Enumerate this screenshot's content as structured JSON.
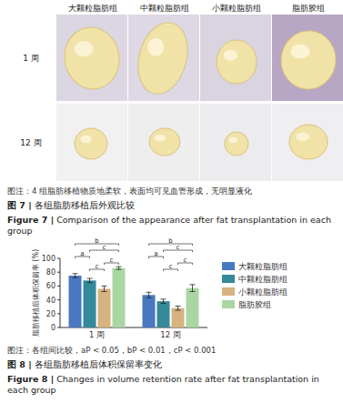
{
  "figure7": {
    "column_headers": [
      "大颗粒脂肪组",
      "中颗粒脂肪组",
      "小颗粒脂肪组",
      "脂肪胶组"
    ],
    "row_labels": [
      "1 周",
      "12 周"
    ],
    "note": "图注：4 组脂肪移植物质地柔软，表面均可见血管形成，无明显液化",
    "caption_zh": "图 7 | 各组脂肪移植后外观比较",
    "caption_en": "Figure 7 | Comparison of the appearance after fat transplantation in each group"
  },
  "chart_data": {
    "type": "bar",
    "y_label": "脂肪移植后体积保留率 (%)",
    "categories": [
      "1 周",
      "12 周"
    ],
    "series": [
      {
        "name": "大颗粒脂肪组",
        "color": "#4a78c0",
        "values": [
          75,
          47
        ],
        "errors": [
          3,
          4
        ]
      },
      {
        "name": "中颗粒脂肪组",
        "color": "#34899a",
        "values": [
          68,
          38
        ],
        "errors": [
          3,
          3
        ]
      },
      {
        "name": "小颗粒脂肪组",
        "color": "#d6b37f",
        "values": [
          56,
          28
        ],
        "errors": [
          4,
          3
        ]
      },
      {
        "name": "脂肪胶组",
        "color": "#a9d6a2",
        "values": [
          86,
          57
        ],
        "errors": [
          2,
          5
        ]
      }
    ],
    "ylim": [
      0,
      100
    ],
    "yticks": [
      0,
      20,
      40,
      60,
      80,
      100
    ],
    "grid": false,
    "legend": "right",
    "annotations": [
      {
        "category": 0,
        "from": 0,
        "to": 3,
        "label": "b"
      },
      {
        "category": 0,
        "from": 1,
        "to": 3,
        "label": "c"
      },
      {
        "category": 0,
        "from": 0,
        "to": 1,
        "label": "a"
      },
      {
        "category": 0,
        "from": 2,
        "to": 3,
        "label": "c"
      },
      {
        "category": 0,
        "from": 1,
        "to": 2,
        "label": "c"
      },
      {
        "category": 1,
        "from": 0,
        "to": 3,
        "label": "b"
      },
      {
        "category": 1,
        "from": 1,
        "to": 3,
        "label": "c"
      },
      {
        "category": 1,
        "from": 0,
        "to": 1,
        "label": "a"
      },
      {
        "category": 1,
        "from": 2,
        "to": 3,
        "label": "c"
      },
      {
        "category": 1,
        "from": 1,
        "to": 2,
        "label": "c"
      }
    ]
  },
  "figure8": {
    "note": "图注：各组间比较，aP < 0.05，bP < 0.01，cP < 0.001",
    "caption_zh": "图 8 | 各组脂肪移植后体积保留率变化",
    "caption_en": "Figure 8 | Changes in volume retention rate after fat transplantation in each group"
  }
}
